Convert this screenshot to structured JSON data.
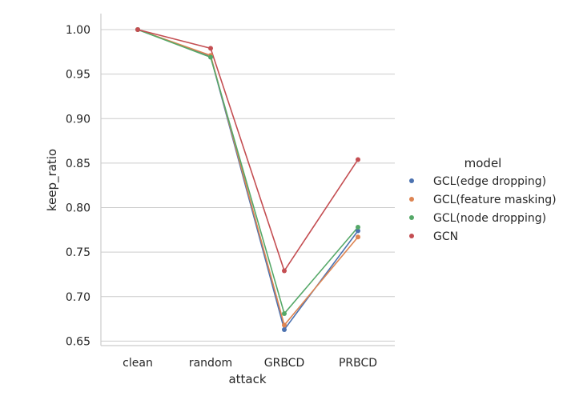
{
  "chart_data": {
    "type": "line",
    "categories": [
      "clean",
      "random",
      "GRBCD",
      "PRBCD"
    ],
    "xlabel": "attack",
    "ylabel": "keep_ratio",
    "ylim": [
      0.645,
      1.018
    ],
    "yticks": [
      0.65,
      0.7,
      0.75,
      0.8,
      0.85,
      0.9,
      0.95,
      1.0
    ],
    "ytick_labels": [
      "0.65",
      "0.70",
      "0.75",
      "0.80",
      "0.85",
      "0.90",
      "0.95",
      "1.00"
    ],
    "grid": "horizontal",
    "legend": {
      "title": "model",
      "placement": "right"
    },
    "series": [
      {
        "name": "GCL(edge dropping)",
        "color": "#4c72b0",
        "values": [
          1.0,
          0.97,
          0.663,
          0.774
        ]
      },
      {
        "name": "GCL(feature masking)",
        "color": "#dd8452",
        "values": [
          1.0,
          0.971,
          0.668,
          0.767
        ]
      },
      {
        "name": "GCL(node dropping)",
        "color": "#55a868",
        "values": [
          1.0,
          0.969,
          0.681,
          0.778
        ]
      },
      {
        "name": "GCN",
        "color": "#c44e52",
        "values": [
          1.0,
          0.979,
          0.729,
          0.854
        ]
      }
    ]
  }
}
